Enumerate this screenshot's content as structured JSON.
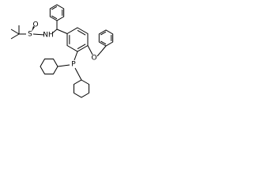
{
  "atoms": [
    "S",
    "O",
    "NH",
    "P",
    "O"
  ]
}
